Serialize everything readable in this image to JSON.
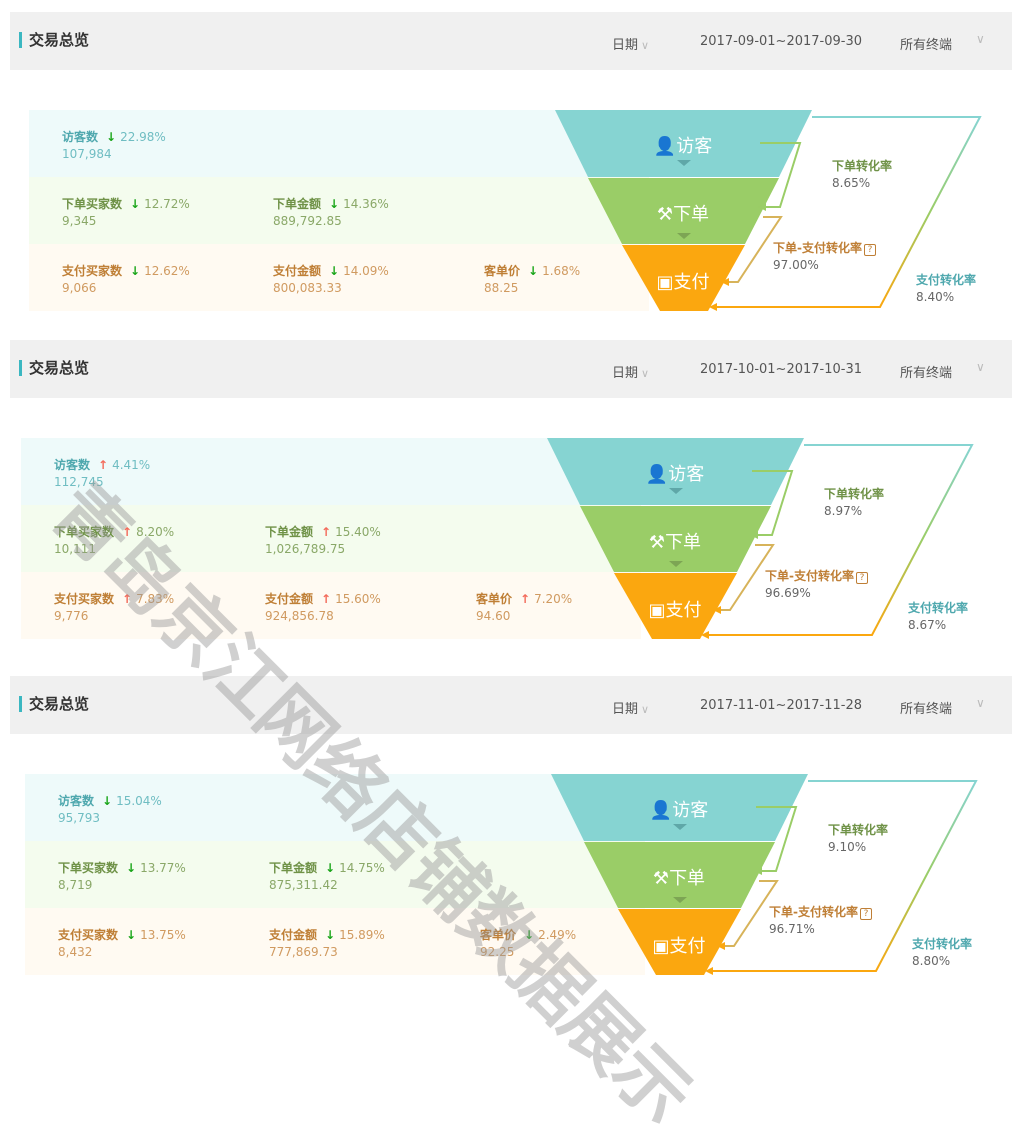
{
  "watermark": "青岛京江网络店铺数据展示",
  "colors": {
    "visitor": "#86d4d2",
    "order": "#9acd67",
    "pay": "#fba70f",
    "accent": "#3bb7c1",
    "down": "#1aa51a",
    "up": "#f36a5a"
  },
  "funnel_labels": {
    "visitor": "访客",
    "order": "下单",
    "pay": "支付"
  },
  "rate_labels": {
    "order_rate": "下单转化率",
    "order_pay_rate": "下单-支付转化率",
    "pay_rate": "支付转化率",
    "help": "?"
  },
  "panels": [
    {
      "title": "交易总览",
      "date_label": "日期",
      "range": "2017-09-01~2017-09-30",
      "terminal": "所有终端",
      "visitors": {
        "label": "访客数",
        "trend": "down",
        "pct": "22.98%",
        "value": "107,984"
      },
      "order_buyers": {
        "label": "下单买家数",
        "trend": "down",
        "pct": "12.72%",
        "value": "9,345"
      },
      "order_amount": {
        "label": "下单金额",
        "trend": "down",
        "pct": "14.36%",
        "value": "889,792.85"
      },
      "pay_buyers": {
        "label": "支付买家数",
        "trend": "down",
        "pct": "12.62%",
        "value": "9,066"
      },
      "pay_amount": {
        "label": "支付金额",
        "trend": "down",
        "pct": "14.09%",
        "value": "800,083.33"
      },
      "unit_price": {
        "label": "客单价",
        "trend": "down",
        "pct": "1.68%",
        "value": "88.25"
      },
      "order_rate": "8.65%",
      "order_pay_rate": "97.00%",
      "pay_rate": "8.40%"
    },
    {
      "title": "交易总览",
      "date_label": "日期",
      "range": "2017-10-01~2017-10-31",
      "terminal": "所有终端",
      "visitors": {
        "label": "访客数",
        "trend": "up",
        "pct": "4.41%",
        "value": "112,745"
      },
      "order_buyers": {
        "label": "下单买家数",
        "trend": "up",
        "pct": "8.20%",
        "value": "10,111"
      },
      "order_amount": {
        "label": "下单金额",
        "trend": "up",
        "pct": "15.40%",
        "value": "1,026,789.75"
      },
      "pay_buyers": {
        "label": "支付买家数",
        "trend": "up",
        "pct": "7.83%",
        "value": "9,776"
      },
      "pay_amount": {
        "label": "支付金额",
        "trend": "up",
        "pct": "15.60%",
        "value": "924,856.78"
      },
      "unit_price": {
        "label": "客单价",
        "trend": "up",
        "pct": "7.20%",
        "value": "94.60"
      },
      "order_rate": "8.97%",
      "order_pay_rate": "96.69%",
      "pay_rate": "8.67%"
    },
    {
      "title": "交易总览",
      "date_label": "日期",
      "range": "2017-11-01~2017-11-28",
      "terminal": "所有终端",
      "visitors": {
        "label": "访客数",
        "trend": "down",
        "pct": "15.04%",
        "value": "95,793"
      },
      "order_buyers": {
        "label": "下单买家数",
        "trend": "down",
        "pct": "13.77%",
        "value": "8,719"
      },
      "order_amount": {
        "label": "下单金额",
        "trend": "down",
        "pct": "14.75%",
        "value": "875,311.42"
      },
      "pay_buyers": {
        "label": "支付买家数",
        "trend": "down",
        "pct": "13.75%",
        "value": "8,432"
      },
      "pay_amount": {
        "label": "支付金额",
        "trend": "down",
        "pct": "15.89%",
        "value": "777,869.73"
      },
      "unit_price": {
        "label": "客单价",
        "trend": "down",
        "pct": "2.49%",
        "value": "92.25"
      },
      "order_rate": "9.10%",
      "order_pay_rate": "96.71%",
      "pay_rate": "8.80%"
    }
  ]
}
